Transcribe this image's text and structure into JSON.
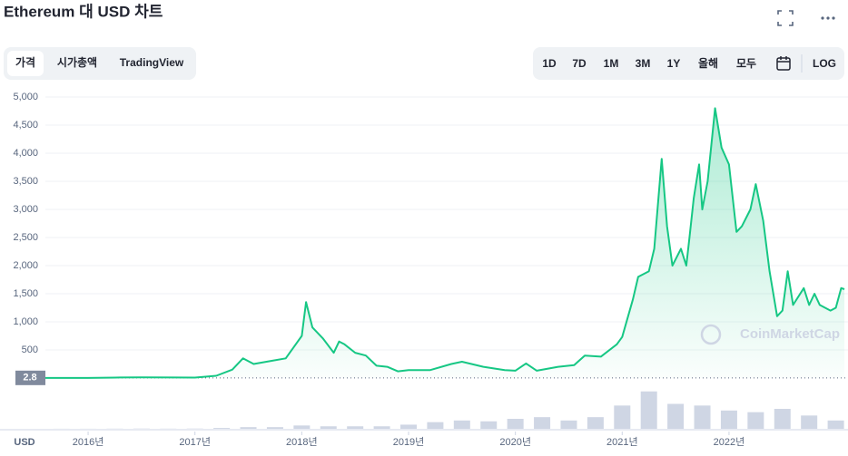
{
  "header": {
    "title": "Ethereum 대 USD 차트"
  },
  "tabs": [
    "가격",
    "시가총액",
    "TradingView"
  ],
  "ranges": [
    "1D",
    "7D",
    "1M",
    "3M",
    "1Y",
    "올해",
    "모두"
  ],
  "log_button": "LOG",
  "chart_data": {
    "type": "line",
    "watermark": "CoinMarketCap",
    "y_unit_label": "USD",
    "x": [
      2015.6,
      2016.0,
      2016.3,
      2016.5,
      2016.8,
      2017.0,
      2017.2,
      2017.35,
      2017.45,
      2017.55,
      2017.7,
      2017.85,
      2018.0,
      2018.04,
      2018.1,
      2018.2,
      2018.3,
      2018.35,
      2018.4,
      2018.5,
      2018.6,
      2018.7,
      2018.8,
      2018.9,
      2019.0,
      2019.2,
      2019.4,
      2019.5,
      2019.7,
      2019.9,
      2020.0,
      2020.1,
      2020.2,
      2020.4,
      2020.55,
      2020.65,
      2020.8,
      2020.95,
      2021.0,
      2021.1,
      2021.15,
      2021.25,
      2021.3,
      2021.37,
      2021.42,
      2021.47,
      2021.55,
      2021.6,
      2021.63,
      2021.67,
      2021.72,
      2021.75,
      2021.8,
      2021.87,
      2021.93,
      2022.0,
      2022.07,
      2022.12,
      2022.2,
      2022.25,
      2022.32,
      2022.38,
      2022.45,
      2022.5,
      2022.55,
      2022.6,
      2022.7,
      2022.75,
      2022.8,
      2022.85,
      2022.95,
      2023.0,
      2023.05,
      2023.08
    ],
    "series": [
      {
        "name": "가격",
        "color": "#16c784",
        "values": [
          1,
          1,
          10,
          12,
          10,
          8,
          40,
          150,
          350,
          250,
          300,
          350,
          750,
          1350,
          900,
          700,
          450,
          650,
          600,
          450,
          400,
          220,
          200,
          120,
          140,
          140,
          250,
          290,
          200,
          140,
          130,
          260,
          130,
          200,
          230,
          400,
          380,
          600,
          730,
          1400,
          1800,
          1900,
          2300,
          3900,
          2700,
          2000,
          2300,
          2000,
          2500,
          3200,
          3800,
          3000,
          3500,
          4800,
          4100,
          3800,
          2600,
          2700,
          3000,
          3450,
          2800,
          1900,
          1100,
          1200,
          1900,
          1300,
          1600,
          1300,
          1500,
          1300,
          1200,
          1250,
          1600,
          1580
        ]
      }
    ],
    "volume": {
      "color": "#cfd6e4",
      "x": [
        2015.75,
        2016.0,
        2016.25,
        2016.5,
        2016.75,
        2017.0,
        2017.25,
        2017.5,
        2017.75,
        2018.0,
        2018.25,
        2018.5,
        2018.75,
        2019.0,
        2019.25,
        2019.5,
        2019.75,
        2020.0,
        2020.25,
        2020.5,
        2020.75,
        2021.0,
        2021.25,
        2021.5,
        2021.75,
        2022.0,
        2022.25,
        2022.5,
        2022.75,
        2023.0
      ],
      "values": [
        0.1,
        0.1,
        0.2,
        0.3,
        0.2,
        0.3,
        1,
        2,
        2,
        4,
        3,
        3,
        3,
        5,
        8,
        10,
        9,
        12,
        14,
        10,
        14,
        28,
        45,
        30,
        28,
        22,
        20,
        24,
        16,
        10
      ]
    },
    "y2lim": [
      0,
      60
    ],
    "start_price": {
      "value": 2.8,
      "label": "2.8"
    },
    "xlim": [
      2015.6,
      2023.08
    ],
    "xticks": [
      {
        "value": 2016,
        "label": "2016년"
      },
      {
        "value": 2017,
        "label": "2017년"
      },
      {
        "value": 2018,
        "label": "2018년"
      },
      {
        "value": 2019,
        "label": "2019년"
      },
      {
        "value": 2020,
        "label": "2020년"
      },
      {
        "value": 2021,
        "label": "2021년"
      },
      {
        "value": 2022,
        "label": "2022년"
      }
    ],
    "ylim": [
      0,
      5000
    ],
    "yticks": [
      {
        "value": 500,
        "label": "500"
      },
      {
        "value": 1000,
        "label": "1,000"
      },
      {
        "value": 1500,
        "label": "1,500"
      },
      {
        "value": 2000,
        "label": "2,000"
      },
      {
        "value": 2500,
        "label": "2,500"
      },
      {
        "value": 3000,
        "label": "3,000"
      },
      {
        "value": 3500,
        "label": "3,500"
      },
      {
        "value": 4000,
        "label": "4,000"
      },
      {
        "value": 4500,
        "label": "4,500"
      },
      {
        "value": 5000,
        "label": "5,000"
      }
    ],
    "grid": true
  }
}
